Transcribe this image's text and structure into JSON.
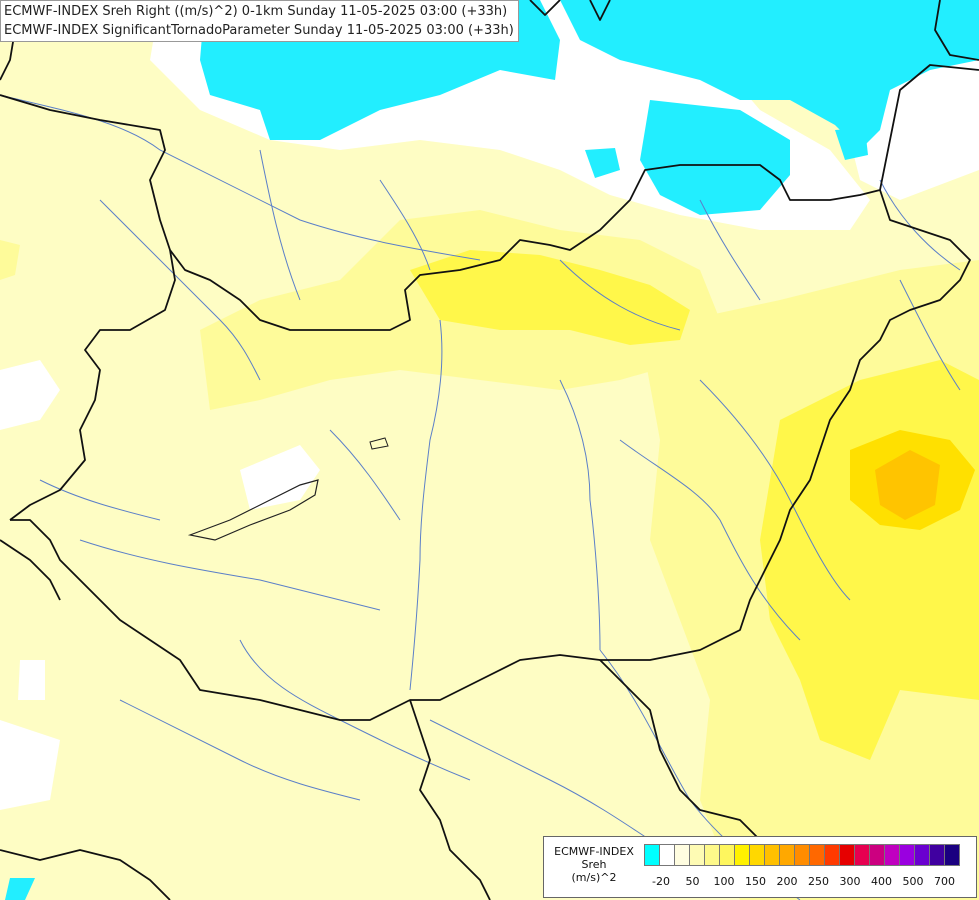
{
  "title": {
    "line1": "ECMWF-INDEX Sreh Right ((m/s)^2) 0-1km Sunday 11-05-2025 03:00 (+33h)",
    "line2": "ECMWF-INDEX SignificantTornadoParameter Sunday 11-05-2025 03:00 (+33h)"
  },
  "legend": {
    "source": "ECMWF-INDEX",
    "variable": "Sreh",
    "unit": "(m/s)^2",
    "colors": [
      "#00ffff",
      "#ffffff",
      "#fffde0",
      "#fefbb4",
      "#fef98a",
      "#fef65e",
      "#fff200",
      "#ffd800",
      "#ffc000",
      "#ffa800",
      "#ff8c00",
      "#ff6800",
      "#ff3a00",
      "#e60000",
      "#e60050",
      "#cc0080",
      "#c000c0",
      "#9a00e0",
      "#6a00d0",
      "#4000a0",
      "#1a0080"
    ],
    "tick_labels": [
      "-20",
      "50",
      "100",
      "150",
      "200",
      "250",
      "300",
      "400",
      "500",
      "700"
    ],
    "colors_meaning": "cyan=negative, white/yellow=low to moderate"
  }
}
